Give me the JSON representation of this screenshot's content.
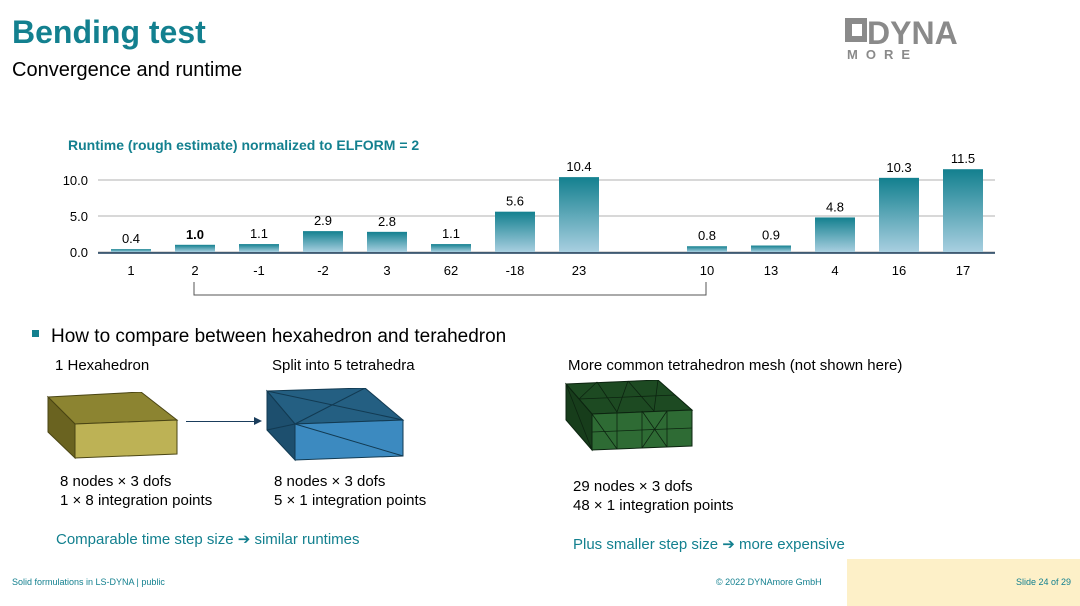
{
  "slide": {
    "title": "Bending test",
    "subtitle": "Convergence and runtime",
    "logo_text": "DYNA",
    "logo_sub": "MORE",
    "bullet": "How to compare between hexahedron and terahedron",
    "hexa": {
      "title": "1 Hexahedron",
      "line1": "8 nodes × 3 dofs",
      "line2": "1 × 8 integration points",
      "color": "#a89d3a"
    },
    "tet5": {
      "title": "Split into 5 tetrahedra",
      "line1": "8 nodes × 3 dofs",
      "line2": "5 × 1 integration points",
      "color": "#2a6f96"
    },
    "tetmesh": {
      "title": "More common tetrahedron mesh (not shown here)",
      "line1": "29 nodes × 3 dofs",
      "line2": "48 × 1 integration points",
      "color": "#1f5a2a"
    },
    "note_left": "Comparable time step size ➔ similar runtimes",
    "note_right": "Plus smaller step size ➔ more expensive",
    "footer_left": "Solid formulations in LS-DYNA | public",
    "footer_mid": "© 2022 DYNAmore GmbH",
    "footer_right": "Slide 24 of 29",
    "accent": "#13808f"
  },
  "chart_data": {
    "type": "bar",
    "title": "Runtime (rough estimate) normalized to ELFORM = 2",
    "categories": [
      "1",
      "2",
      "-1",
      "-2",
      "3",
      "62",
      "-18",
      "23",
      "10",
      "13",
      "4",
      "16",
      "17"
    ],
    "values": [
      0.4,
      1.0,
      1.1,
      2.9,
      2.8,
      1.1,
      5.6,
      10.4,
      0.8,
      0.9,
      4.8,
      10.3,
      11.5
    ],
    "value_labels": [
      "0.4",
      "1.0",
      "1.1",
      "2.9",
      "2.8",
      "1.1",
      "5.6",
      "10.4",
      "0.8",
      "0.9",
      "4.8",
      "10.3",
      "11.5"
    ],
    "yticks": [
      "0.0",
      "5.0",
      "10.0"
    ],
    "ylim": [
      0,
      12
    ],
    "bold_category": "2",
    "grid": true,
    "bar_color_top": "#13808f",
    "bar_color_bottom": "#a8cfe0"
  }
}
